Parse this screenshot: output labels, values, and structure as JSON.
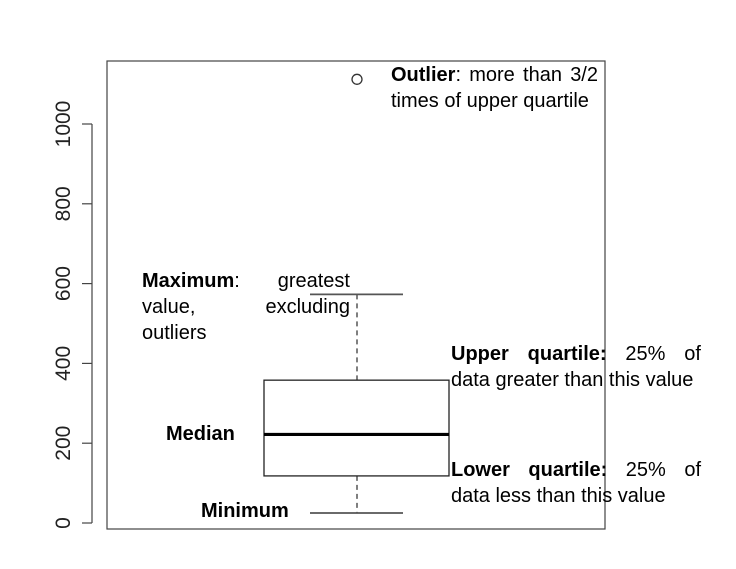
{
  "chart_data": {
    "type": "boxplot",
    "title": "",
    "xlabel": "",
    "ylabel": "",
    "ylim": [
      0,
      1150
    ],
    "yticks": [
      0,
      200,
      400,
      600,
      800,
      1000
    ],
    "ytick_labels": [
      "0",
      "200",
      "400",
      "600",
      "800",
      "1000"
    ],
    "grid": false,
    "box": {
      "minimum": 25,
      "lower_quartile": 118,
      "median": 222,
      "upper_quartile": 358,
      "maximum": 573
    },
    "outliers": [
      1112
    ],
    "annotations": {
      "outlier": {
        "term": "Outlier",
        "text": ": more than 3/2 times of upper quartile"
      },
      "maximum": {
        "term": "Maximum",
        "text": ": greatest value, excluding outliers"
      },
      "upper_quartile": {
        "term": "Upper quartile:",
        "text": " 25% of data greater than this value"
      },
      "median": {
        "term": "Median"
      },
      "lower_quartile": {
        "term": "Lower quartile:",
        "text": " 25% of data less than this value"
      },
      "minimum": {
        "term": "Minimum"
      }
    },
    "colors": {
      "axis": "#444444",
      "box": "#222222",
      "median": "#000000",
      "whisker": "#555555"
    }
  }
}
